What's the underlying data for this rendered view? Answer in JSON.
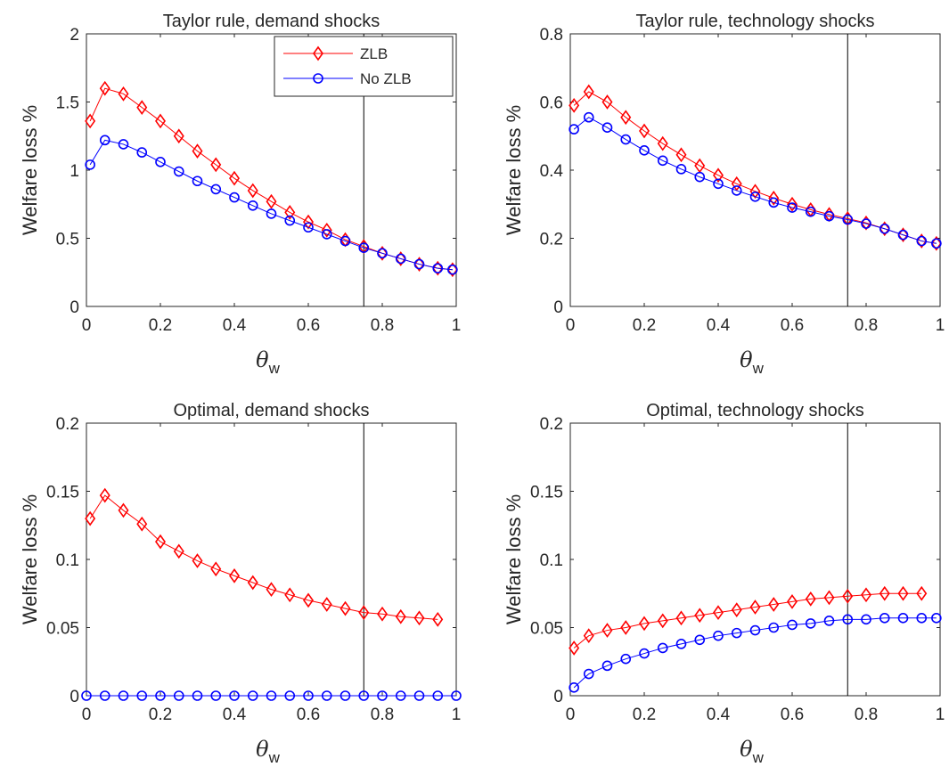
{
  "chart_data": [
    {
      "type": "line",
      "title": "Taylor rule, demand shocks",
      "xlabel": "θ",
      "xlabel_sub": "w",
      "ylabel": "Welfare loss %",
      "xlim": [
        0,
        1
      ],
      "ylim": [
        0,
        2
      ],
      "xticks": [
        "0",
        "0.2",
        "0.4",
        "0.6",
        "0.8",
        "1"
      ],
      "yticks": [
        "0",
        "0.5",
        "1",
        "1.5",
        "2"
      ],
      "vline": 0.75,
      "legend": "top-right",
      "x": [
        0.01,
        0.05,
        0.1,
        0.15,
        0.2,
        0.25,
        0.3,
        0.35,
        0.4,
        0.45,
        0.5,
        0.55,
        0.6,
        0.65,
        0.7,
        0.75,
        0.8,
        0.85,
        0.9,
        0.95,
        0.99
      ],
      "series": [
        {
          "name": "ZLB",
          "color": "#ff0000",
          "marker": "diamond",
          "values": [
            1.36,
            1.6,
            1.56,
            1.46,
            1.36,
            1.25,
            1.14,
            1.04,
            0.94,
            0.85,
            0.77,
            0.69,
            0.62,
            0.56,
            0.49,
            0.44,
            0.39,
            0.35,
            0.31,
            0.28,
            0.27
          ]
        },
        {
          "name": "No ZLB",
          "color": "#0000ff",
          "marker": "circle",
          "values": [
            1.04,
            1.22,
            1.19,
            1.13,
            1.06,
            0.99,
            0.92,
            0.86,
            0.8,
            0.74,
            0.68,
            0.63,
            0.58,
            0.53,
            0.48,
            0.43,
            0.39,
            0.35,
            0.31,
            0.28,
            0.27
          ]
        }
      ]
    },
    {
      "type": "line",
      "title": "Taylor rule, technology shocks",
      "xlabel": "θ",
      "xlabel_sub": "w",
      "ylabel": "Welfare loss %",
      "xlim": [
        0,
        1
      ],
      "ylim": [
        0,
        0.8
      ],
      "xticks": [
        "0",
        "0.2",
        "0.4",
        "0.6",
        "0.8",
        "1"
      ],
      "yticks": [
        "0",
        "0.2",
        "0.4",
        "0.6",
        "0.8"
      ],
      "vline": 0.75,
      "x": [
        0.01,
        0.05,
        0.1,
        0.15,
        0.2,
        0.25,
        0.3,
        0.35,
        0.4,
        0.45,
        0.5,
        0.55,
        0.6,
        0.65,
        0.7,
        0.75,
        0.8,
        0.85,
        0.9,
        0.95,
        0.99
      ],
      "series": [
        {
          "name": "ZLB",
          "color": "#ff0000",
          "marker": "diamond",
          "values": [
            0.59,
            0.63,
            0.6,
            0.555,
            0.515,
            0.478,
            0.445,
            0.413,
            0.385,
            0.36,
            0.338,
            0.318,
            0.3,
            0.284,
            0.27,
            0.258,
            0.245,
            0.228,
            0.21,
            0.192,
            0.185
          ]
        },
        {
          "name": "No ZLB",
          "color": "#0000ff",
          "marker": "circle",
          "values": [
            0.52,
            0.555,
            0.525,
            0.49,
            0.458,
            0.428,
            0.403,
            0.38,
            0.36,
            0.34,
            0.322,
            0.305,
            0.29,
            0.278,
            0.265,
            0.255,
            0.243,
            0.228,
            0.21,
            0.192,
            0.185
          ]
        }
      ]
    },
    {
      "type": "line",
      "title": "Optimal, demand shocks",
      "xlabel": "θ",
      "xlabel_sub": "w",
      "ylabel": "Welfare loss %",
      "xlim": [
        0,
        1
      ],
      "ylim": [
        0,
        0.2
      ],
      "xticks": [
        "0",
        "0.2",
        "0.4",
        "0.6",
        "0.8",
        "1"
      ],
      "yticks": [
        "0",
        "0.05",
        "0.1",
        "0.15",
        "0.2"
      ],
      "vline": 0.75,
      "series": [
        {
          "name": "ZLB",
          "color": "#ff0000",
          "marker": "diamond",
          "x": [
            0.01,
            0.05,
            0.1,
            0.15,
            0.2,
            0.25,
            0.3,
            0.35,
            0.4,
            0.45,
            0.5,
            0.55,
            0.6,
            0.65,
            0.7,
            0.75,
            0.8,
            0.85,
            0.9,
            0.95
          ],
          "values": [
            0.13,
            0.147,
            0.136,
            0.126,
            0.113,
            0.106,
            0.099,
            0.093,
            0.088,
            0.083,
            0.078,
            0.074,
            0.07,
            0.067,
            0.064,
            0.061,
            0.06,
            0.058,
            0.057,
            0.056
          ]
        },
        {
          "name": "No ZLB",
          "color": "#0000ff",
          "marker": "circle",
          "x": [
            0.0,
            0.05,
            0.1,
            0.15,
            0.2,
            0.25,
            0.3,
            0.35,
            0.4,
            0.45,
            0.5,
            0.55,
            0.6,
            0.65,
            0.7,
            0.75,
            0.8,
            0.85,
            0.9,
            0.95,
            1.0
          ],
          "values": [
            0,
            0,
            0,
            0,
            0,
            0,
            0,
            0,
            0,
            0,
            0,
            0,
            0,
            0,
            0,
            0,
            0,
            0,
            0,
            0,
            0
          ]
        }
      ]
    },
    {
      "type": "line",
      "title": "Optimal, technology shocks",
      "xlabel": "θ",
      "xlabel_sub": "w",
      "ylabel": "Welfare loss %",
      "xlim": [
        0,
        1
      ],
      "ylim": [
        0,
        0.2
      ],
      "xticks": [
        "0",
        "0.2",
        "0.4",
        "0.6",
        "0.8",
        "1"
      ],
      "yticks": [
        "0",
        "0.05",
        "0.1",
        "0.15",
        "0.2"
      ],
      "vline": 0.75,
      "series": [
        {
          "name": "ZLB",
          "color": "#ff0000",
          "marker": "diamond",
          "x": [
            0.01,
            0.05,
            0.1,
            0.15,
            0.2,
            0.25,
            0.3,
            0.35,
            0.4,
            0.45,
            0.5,
            0.55,
            0.6,
            0.65,
            0.7,
            0.75,
            0.8,
            0.85,
            0.9,
            0.95
          ],
          "values": [
            0.035,
            0.044,
            0.048,
            0.05,
            0.053,
            0.055,
            0.057,
            0.059,
            0.061,
            0.063,
            0.065,
            0.067,
            0.069,
            0.071,
            0.072,
            0.073,
            0.074,
            0.075,
            0.075,
            0.075
          ]
        },
        {
          "name": "No ZLB",
          "color": "#0000ff",
          "marker": "circle",
          "x": [
            0.01,
            0.05,
            0.1,
            0.15,
            0.2,
            0.25,
            0.3,
            0.35,
            0.4,
            0.45,
            0.5,
            0.55,
            0.6,
            0.65,
            0.7,
            0.75,
            0.8,
            0.85,
            0.9,
            0.95,
            0.99
          ],
          "values": [
            0.006,
            0.016,
            0.022,
            0.027,
            0.031,
            0.035,
            0.038,
            0.041,
            0.044,
            0.046,
            0.048,
            0.05,
            0.052,
            0.053,
            0.055,
            0.056,
            0.056,
            0.057,
            0.057,
            0.057,
            0.057
          ]
        }
      ]
    }
  ]
}
